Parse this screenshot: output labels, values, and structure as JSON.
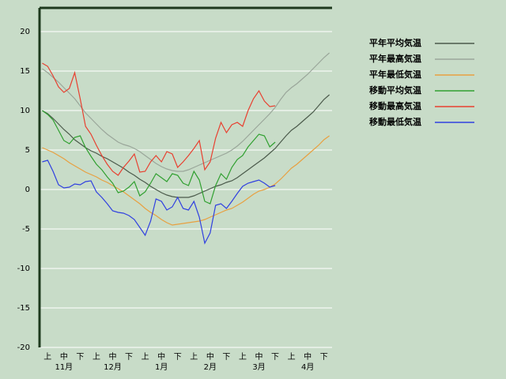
{
  "chart_data": {
    "type": "line",
    "categories": [
      null,
      "上",
      null,
      null,
      "中",
      null,
      null,
      "下",
      null,
      null,
      "上",
      null,
      null,
      "中",
      null,
      null,
      "下",
      null,
      null,
      "上",
      null,
      null,
      "中",
      null,
      null,
      "下",
      null,
      null,
      "上",
      null,
      null,
      "中",
      null,
      null,
      "下",
      null,
      null,
      "上",
      null,
      null,
      "中",
      null,
      null,
      "下",
      null,
      null,
      "上",
      null,
      null,
      "中",
      null,
      null,
      "下",
      null
    ],
    "months": [
      "11月",
      "12月",
      "1月",
      "2月",
      "3月",
      "4月"
    ],
    "ylim": [
      -20,
      23
    ],
    "yticks": [
      20,
      15,
      10,
      5,
      0,
      -5,
      -10,
      -15,
      -20
    ],
    "grid": true,
    "legend": "right",
    "series": [
      {
        "name": "平年平均気温",
        "color": "#4b5a4b",
        "values": [
          10,
          9.6,
          9,
          8.3,
          7.6,
          7,
          6.3,
          5.8,
          5.3,
          4.9,
          4.6,
          4.2,
          3.9,
          3.5,
          3.1,
          2.7,
          2.2,
          1.8,
          1.3,
          0.9,
          0.4,
          0,
          -0.4,
          -0.7,
          -0.9,
          -1,
          -1,
          -1,
          -0.8,
          -0.5,
          -0.2,
          0.1,
          0.4,
          0.6,
          0.9,
          1.1,
          1.5,
          2,
          2.5,
          3,
          3.5,
          4,
          4.6,
          5.2,
          6,
          6.8,
          7.5,
          8,
          8.6,
          9.2,
          9.8,
          10.6,
          11.4,
          12
        ]
      },
      {
        "name": "平年最高気温",
        "color": "#9aa69a",
        "values": [
          15.3,
          14.8,
          14.2,
          13.6,
          12.9,
          12.2,
          11.5,
          10.6,
          9.7,
          9,
          8.3,
          7.6,
          7,
          6.5,
          6,
          5.7,
          5.5,
          5.2,
          4.8,
          4.3,
          3.8,
          3.3,
          2.9,
          2.6,
          2.4,
          2.3,
          2.3,
          2.5,
          2.8,
          3.1,
          3.4,
          3.7,
          4,
          4.3,
          4.6,
          5,
          5.5,
          6.1,
          6.8,
          7.5,
          8.2,
          8.9,
          9.6,
          10.4,
          11.4,
          12.3,
          12.9,
          13.4,
          14,
          14.6,
          15.3,
          16,
          16.7,
          17.3
        ]
      },
      {
        "name": "平年最低気温",
        "color": "#e8a040",
        "values": [
          5.3,
          5,
          4.7,
          4.3,
          3.9,
          3.4,
          3,
          2.6,
          2.2,
          1.9,
          1.6,
          1.2,
          0.9,
          0.5,
          0.1,
          -0.3,
          -0.8,
          -1.3,
          -1.8,
          -2.4,
          -2.9,
          -3.3,
          -3.8,
          -4.2,
          -4.5,
          -4.4,
          -4.3,
          -4.2,
          -4.1,
          -4,
          -3.8,
          -3.5,
          -3.2,
          -2.9,
          -2.6,
          -2.4,
          -2,
          -1.6,
          -1.1,
          -0.6,
          -0.2,
          0,
          0.3,
          0.7,
          1.3,
          2,
          2.7,
          3.2,
          3.8,
          4.4,
          5,
          5.6,
          6.3,
          6.8
        ]
      },
      {
        "name": "移動平均気温",
        "color": "#30a030",
        "values": [
          10,
          9.5,
          8.8,
          7.5,
          6.2,
          5.8,
          6.6,
          6.8,
          5.3,
          4.2,
          3.2,
          2.5,
          1.6,
          0.8,
          -0.4,
          -0.2,
          0.3,
          1,
          -0.8,
          -0.3,
          0.8,
          2,
          1.5,
          1,
          2,
          1.8,
          0.8,
          0.5,
          2.3,
          1.2,
          -1.5,
          -1.8,
          0.5,
          2,
          1.3,
          2.8,
          3.8,
          4.3,
          5.4,
          6.2,
          7,
          6.8,
          5.4,
          6,
          null,
          null,
          null,
          null,
          null,
          null,
          null,
          null,
          null,
          null
        ]
      },
      {
        "name": "移動最高気温",
        "color": "#e84030",
        "values": [
          16,
          15.6,
          14.4,
          13,
          12.3,
          12.8,
          14.8,
          11.5,
          8,
          7,
          5.6,
          4.3,
          3.2,
          2.3,
          1.8,
          2.8,
          3.6,
          4.5,
          2.2,
          2.3,
          3.5,
          4.3,
          3.5,
          4.8,
          4.5,
          2.8,
          3.5,
          4.3,
          5.2,
          6.2,
          2.5,
          3.5,
          6.5,
          8.5,
          7.2,
          8.2,
          8.5,
          8,
          10,
          11.5,
          12.5,
          11.2,
          10.5,
          10.6,
          null,
          null,
          null,
          null,
          null,
          null,
          null,
          null,
          null,
          null
        ]
      },
      {
        "name": "移動最低気温",
        "color": "#3040e0",
        "values": [
          3.5,
          3.7,
          2.3,
          0.6,
          0.2,
          0.3,
          0.7,
          0.6,
          1,
          1.1,
          -0.3,
          -1,
          -1.8,
          -2.7,
          -2.9,
          -3,
          -3.3,
          -3.8,
          -4.8,
          -5.8,
          -4,
          -1.2,
          -1.5,
          -2.6,
          -2.2,
          -1,
          -2.4,
          -2.6,
          -1.5,
          -3.5,
          -6.8,
          -5.5,
          -2,
          -1.8,
          -2.4,
          -1.5,
          -0.5,
          0.4,
          0.8,
          1,
          1.2,
          0.8,
          0.3,
          0.5,
          null,
          null,
          null,
          null,
          null,
          null,
          null,
          null,
          null,
          null
        ]
      }
    ]
  }
}
